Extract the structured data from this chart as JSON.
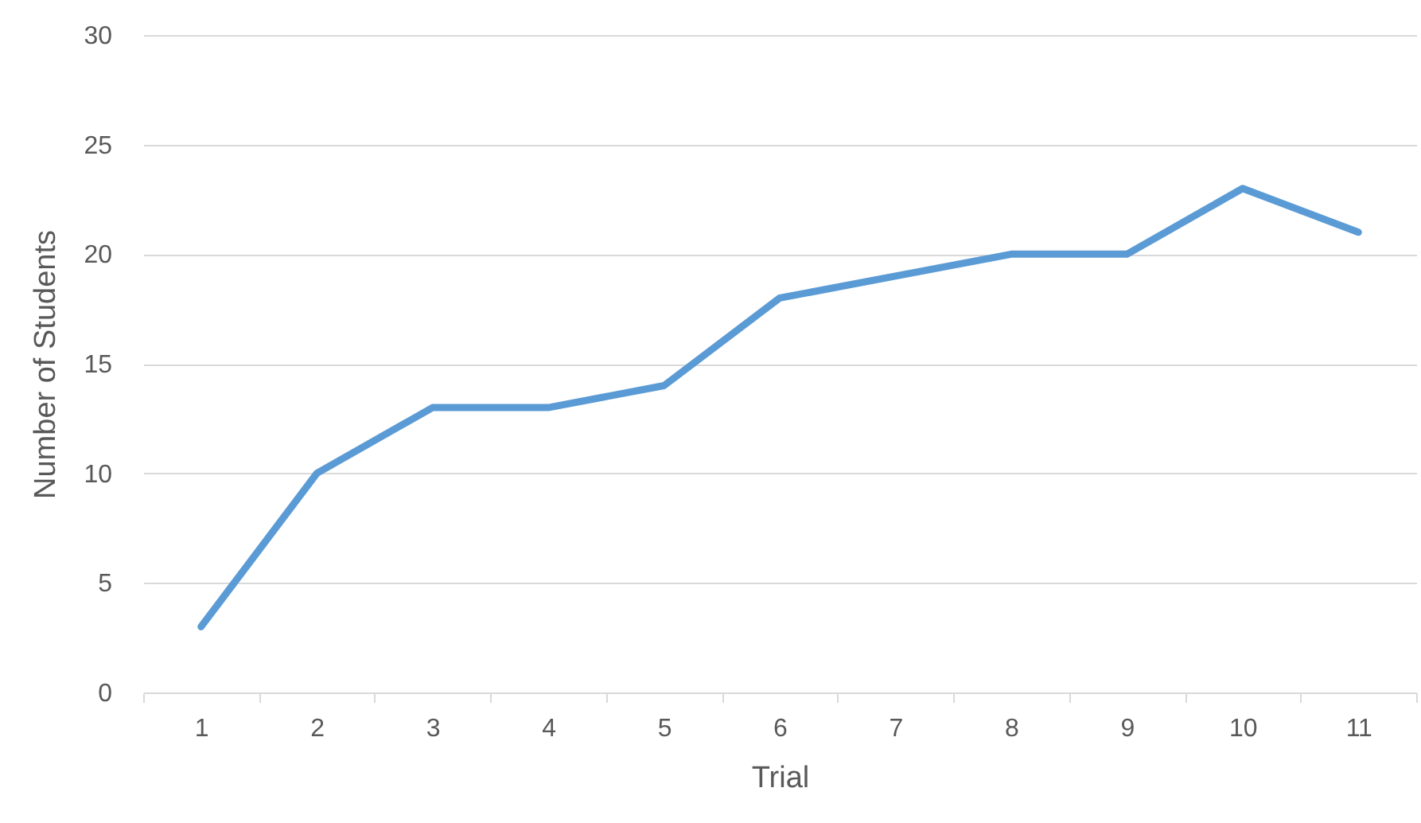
{
  "chart_data": {
    "type": "line",
    "xlabel": "Trial",
    "ylabel": "Number of Students",
    "categories": [
      "1",
      "2",
      "3",
      "4",
      "5",
      "6",
      "7",
      "8",
      "9",
      "10",
      "11"
    ],
    "series": [
      {
        "color": "#5b9bd5",
        "values": [
          3,
          10,
          13,
          13,
          14,
          18,
          19,
          20,
          20,
          23,
          21
        ]
      }
    ],
    "ylim": [
      0,
      30
    ],
    "yticks": [
      0,
      5,
      10,
      15,
      20,
      25,
      30
    ],
    "grid": "y",
    "marker": "none",
    "line_style": "solid"
  }
}
